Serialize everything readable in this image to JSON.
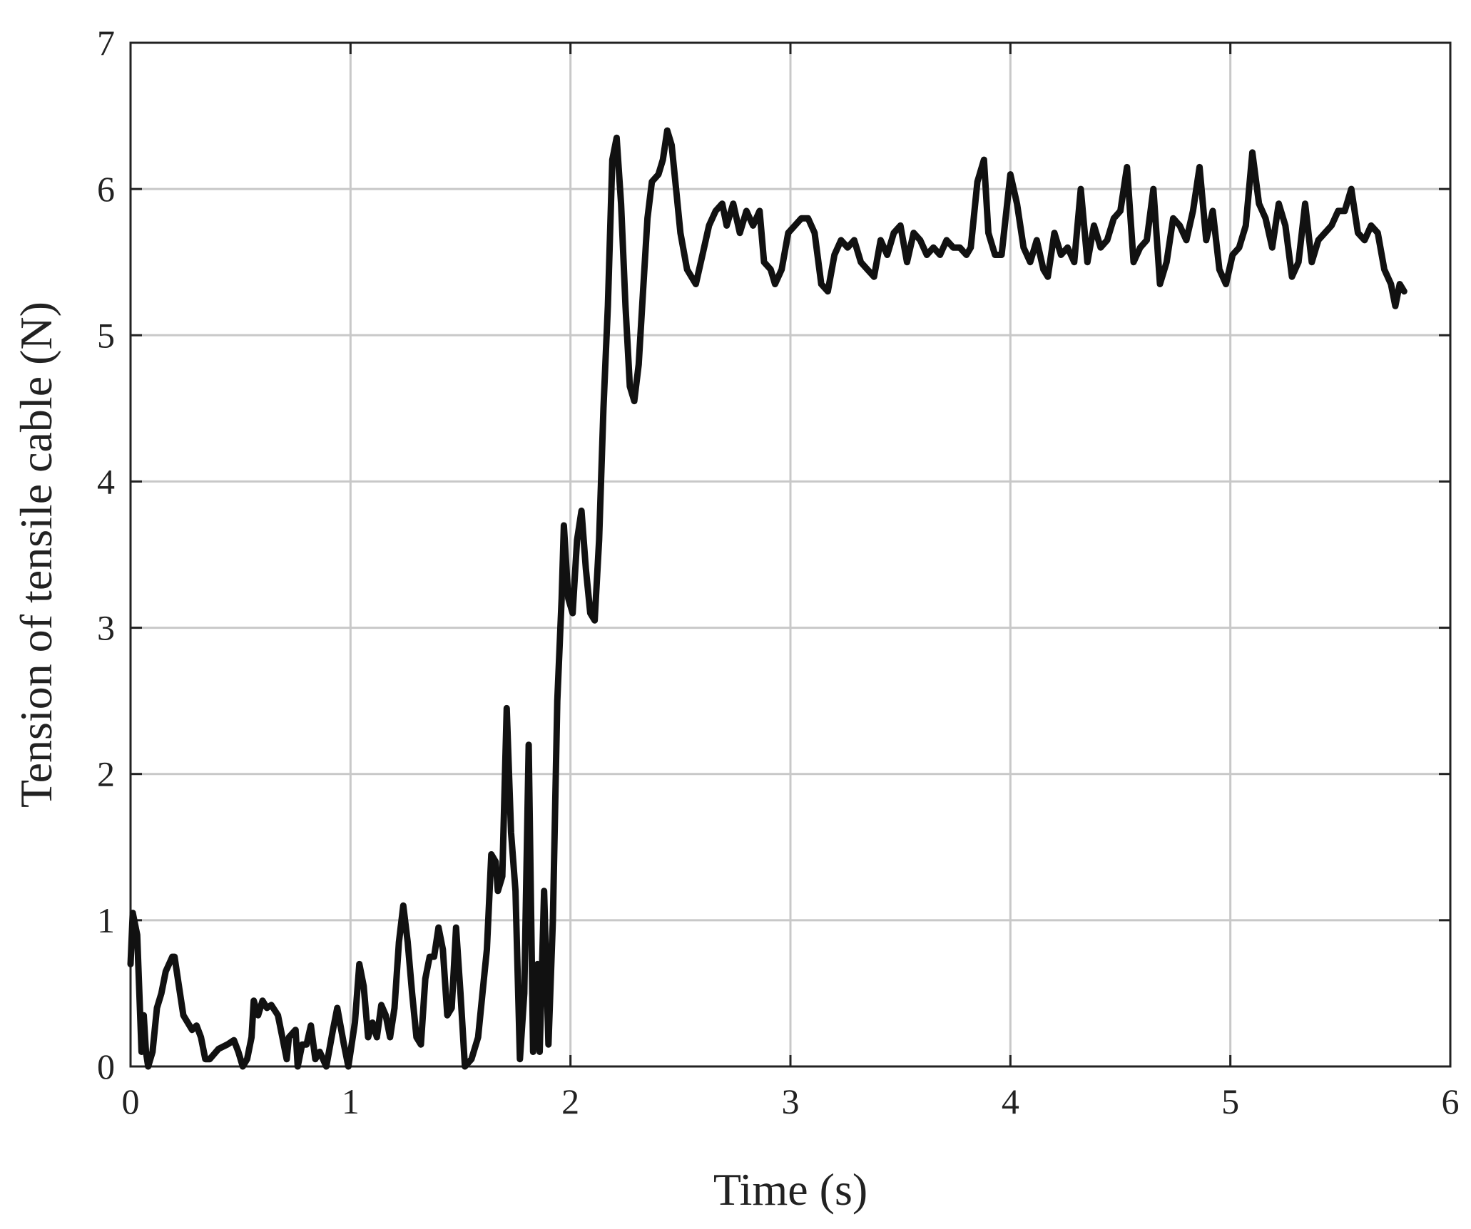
{
  "chart_data": {
    "type": "line",
    "xlabel": "Time (s)",
    "ylabel": "Tension of tensile cable (N)",
    "xlim": [
      0,
      6
    ],
    "xticks": [
      0,
      1,
      2,
      3,
      4,
      5,
      6
    ],
    "ylim": [
      0,
      7
    ],
    "yticks": [
      0,
      1,
      2,
      3,
      4,
      5,
      6,
      7
    ],
    "grid": true,
    "color": "#111111",
    "x": [
      0.0,
      0.01,
      0.03,
      0.05,
      0.06,
      0.07,
      0.08,
      0.1,
      0.12,
      0.14,
      0.16,
      0.19,
      0.2,
      0.22,
      0.24,
      0.26,
      0.28,
      0.3,
      0.32,
      0.34,
      0.36,
      0.4,
      0.44,
      0.47,
      0.49,
      0.51,
      0.53,
      0.55,
      0.56,
      0.58,
      0.6,
      0.62,
      0.64,
      0.67,
      0.69,
      0.71,
      0.72,
      0.75,
      0.76,
      0.78,
      0.8,
      0.82,
      0.84,
      0.86,
      0.89,
      0.92,
      0.94,
      0.97,
      0.99,
      1.02,
      1.04,
      1.06,
      1.08,
      1.1,
      1.12,
      1.14,
      1.16,
      1.18,
      1.2,
      1.22,
      1.24,
      1.26,
      1.28,
      1.3,
      1.32,
      1.34,
      1.36,
      1.38,
      1.4,
      1.42,
      1.44,
      1.46,
      1.48,
      1.5,
      1.52,
      1.55,
      1.58,
      1.6,
      1.62,
      1.64,
      1.66,
      1.67,
      1.69,
      1.71,
      1.73,
      1.75,
      1.77,
      1.79,
      1.81,
      1.83,
      1.85,
      1.86,
      1.88,
      1.9,
      1.92,
      1.94,
      1.96,
      1.97,
      1.99,
      2.01,
      2.03,
      2.05,
      2.07,
      2.09,
      2.11,
      2.13,
      2.15,
      2.17,
      2.19,
      2.21,
      2.23,
      2.25,
      2.27,
      2.29,
      2.31,
      2.33,
      2.35,
      2.37,
      2.4,
      2.42,
      2.44,
      2.46,
      2.48,
      2.5,
      2.53,
      2.57,
      2.6,
      2.63,
      2.66,
      2.69,
      2.71,
      2.74,
      2.77,
      2.8,
      2.83,
      2.86,
      2.88,
      2.91,
      2.93,
      2.96,
      2.99,
      3.02,
      3.05,
      3.08,
      3.11,
      3.14,
      3.17,
      3.2,
      3.23,
      3.26,
      3.29,
      3.32,
      3.35,
      3.38,
      3.41,
      3.44,
      3.47,
      3.5,
      3.53,
      3.56,
      3.59,
      3.62,
      3.65,
      3.68,
      3.71,
      3.74,
      3.77,
      3.8,
      3.82,
      3.85,
      3.88,
      3.9,
      3.93,
      3.96,
      4.0,
      4.03,
      4.06,
      4.09,
      4.12,
      4.15,
      4.17,
      4.2,
      4.23,
      4.26,
      4.29,
      4.32,
      4.35,
      4.38,
      4.41,
      4.44,
      4.47,
      4.5,
      4.53,
      4.56,
      4.59,
      4.62,
      4.65,
      4.68,
      4.71,
      4.74,
      4.77,
      4.8,
      4.83,
      4.86,
      4.89,
      4.92,
      4.95,
      4.98,
      5.01,
      5.04,
      5.07,
      5.1,
      5.13,
      5.16,
      5.19,
      5.22,
      5.25,
      5.28,
      5.31,
      5.34,
      5.37,
      5.4,
      5.43,
      5.46,
      5.49,
      5.52,
      5.55,
      5.58,
      5.61,
      5.64,
      5.67,
      5.7,
      5.73,
      5.75,
      5.77,
      5.79
    ],
    "values": [
      0.7,
      1.05,
      0.9,
      0.1,
      0.35,
      0.1,
      0.0,
      0.1,
      0.4,
      0.5,
      0.65,
      0.75,
      0.75,
      0.55,
      0.35,
      0.3,
      0.25,
      0.28,
      0.2,
      0.05,
      0.05,
      0.12,
      0.15,
      0.18,
      0.1,
      0.0,
      0.05,
      0.2,
      0.45,
      0.35,
      0.45,
      0.4,
      0.42,
      0.35,
      0.2,
      0.05,
      0.2,
      0.25,
      0.0,
      0.15,
      0.15,
      0.28,
      0.05,
      0.1,
      0.0,
      0.25,
      0.4,
      0.15,
      0.0,
      0.3,
      0.7,
      0.55,
      0.2,
      0.3,
      0.2,
      0.42,
      0.35,
      0.2,
      0.4,
      0.85,
      1.1,
      0.85,
      0.5,
      0.2,
      0.15,
      0.6,
      0.75,
      0.75,
      0.95,
      0.8,
      0.35,
      0.4,
      0.95,
      0.5,
      0.0,
      0.05,
      0.2,
      0.5,
      0.8,
      1.45,
      1.4,
      1.2,
      1.3,
      2.45,
      1.6,
      1.2,
      0.05,
      0.5,
      2.2,
      0.1,
      0.7,
      0.1,
      1.2,
      0.15,
      1.0,
      2.5,
      3.2,
      3.7,
      3.2,
      3.1,
      3.6,
      3.8,
      3.4,
      3.1,
      3.05,
      3.6,
      4.5,
      5.2,
      6.2,
      6.35,
      5.9,
      5.2,
      4.65,
      4.55,
      4.8,
      5.3,
      5.8,
      6.05,
      6.1,
      6.2,
      6.4,
      6.3,
      6.0,
      5.7,
      5.45,
      5.35,
      5.55,
      5.75,
      5.85,
      5.9,
      5.75,
      5.9,
      5.7,
      5.85,
      5.75,
      5.85,
      5.5,
      5.45,
      5.35,
      5.45,
      5.7,
      5.75,
      5.8,
      5.8,
      5.7,
      5.35,
      5.3,
      5.55,
      5.65,
      5.6,
      5.65,
      5.5,
      5.45,
      5.4,
      5.65,
      5.55,
      5.7,
      5.75,
      5.5,
      5.7,
      5.65,
      5.55,
      5.6,
      5.55,
      5.65,
      5.6,
      5.6,
      5.55,
      5.6,
      6.05,
      6.2,
      5.7,
      5.55,
      5.55,
      6.1,
      5.9,
      5.6,
      5.5,
      5.65,
      5.45,
      5.4,
      5.7,
      5.55,
      5.6,
      5.5,
      6.0,
      5.5,
      5.75,
      5.6,
      5.65,
      5.8,
      5.85,
      6.15,
      5.5,
      5.6,
      5.65,
      6.0,
      5.35,
      5.5,
      5.8,
      5.75,
      5.65,
      5.85,
      6.15,
      5.65,
      5.85,
      5.45,
      5.35,
      5.55,
      5.6,
      5.75,
      6.25,
      5.9,
      5.8,
      5.6,
      5.9,
      5.75,
      5.4,
      5.5,
      5.9,
      5.5,
      5.65,
      5.7,
      5.75,
      5.85,
      5.85,
      6.0,
      5.7,
      5.65,
      5.75,
      5.7,
      5.45,
      5.35,
      5.2,
      5.35,
      5.3
    ]
  }
}
